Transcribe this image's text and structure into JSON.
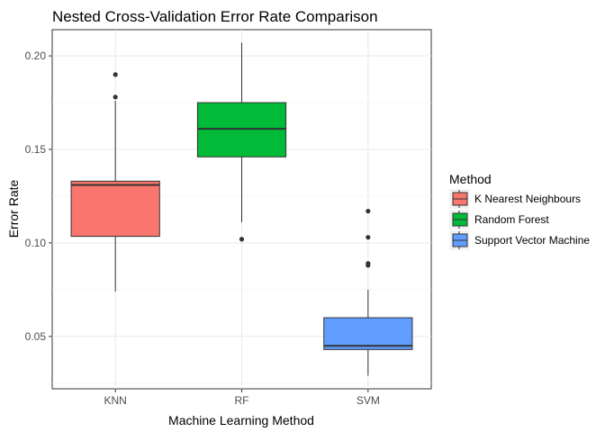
{
  "chart_data": {
    "type": "box",
    "title": "Nested Cross-Validation Error Rate Comparison",
    "xlabel": "Machine Learning Method",
    "ylabel": "Error Rate",
    "ylim": [
      0.022,
      0.214
    ],
    "yticks": [
      0.05,
      0.1,
      0.15,
      0.2
    ],
    "ytick_labels": [
      "0.05",
      "0.10",
      "0.15",
      "0.20"
    ],
    "grid": true,
    "legend": {
      "title": "Method",
      "position": "right",
      "entries": [
        "K Nearest Neighbours",
        "Random Forest",
        "Support Vector Machine"
      ]
    },
    "categories": [
      "KNN",
      "RF",
      "SVM"
    ],
    "series": [
      {
        "name": "K Nearest Neighbours",
        "color": "#F8766D",
        "whisker_low": 0.074,
        "q1": 0.1035,
        "median": 0.131,
        "q3": 0.133,
        "whisker_high": 0.176,
        "outliers": [
          0.178,
          0.19
        ]
      },
      {
        "name": "Random Forest",
        "color": "#00BA38",
        "whisker_low": 0.111,
        "q1": 0.146,
        "median": 0.161,
        "q3": 0.175,
        "whisker_high": 0.207,
        "outliers": [
          0.102
        ]
      },
      {
        "name": "Support Vector Machine",
        "color": "#619CFF",
        "whisker_low": 0.029,
        "q1": 0.043,
        "median": 0.045,
        "q3": 0.06,
        "whisker_high": 0.075,
        "outliers": [
          0.088,
          0.089,
          0.103,
          0.117
        ]
      }
    ]
  }
}
